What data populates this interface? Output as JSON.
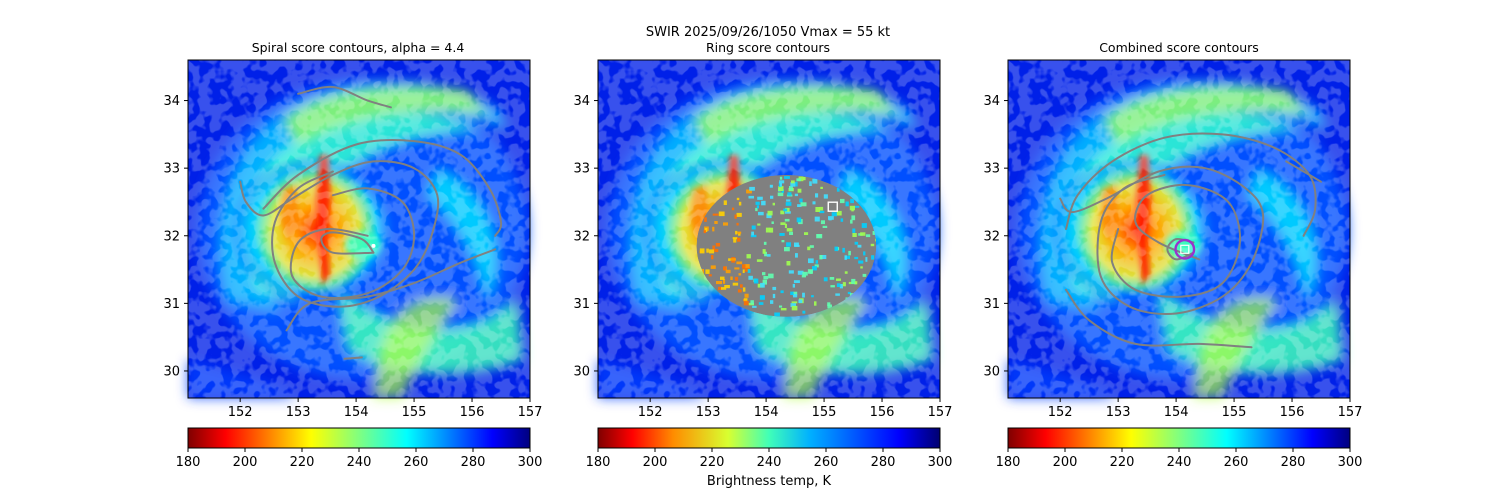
{
  "suptitle": "SWIR  2025/09/26/1050    Vmax = 55 kt",
  "colors": {
    "eye_marker": "#ffffff",
    "contour": "#808080",
    "ring_fill": "#808080",
    "center_ring": "#9933cc"
  },
  "chart_data": [
    {
      "type": "heatmap",
      "title": "Spiral score contours, alpha =  4.4",
      "xlim": [
        151.1,
        157.0
      ],
      "ylim": [
        29.6,
        34.6
      ],
      "xticks": [
        "152",
        "153",
        "154",
        "155",
        "156",
        "157"
      ],
      "yticks": [
        "30",
        "31",
        "32",
        "33",
        "34"
      ],
      "storm_center": [
        154.3,
        31.85
      ],
      "overlay": "spiral",
      "contours": [
        [
          [
            152.0,
            32.8
          ],
          [
            152.1,
            32.5
          ],
          [
            152.4,
            32.3
          ],
          [
            152.9,
            32.55
          ],
          [
            153.6,
            32.9
          ],
          [
            154.3,
            33.1
          ],
          [
            155.0,
            33.0
          ],
          [
            155.4,
            32.6
          ],
          [
            155.3,
            32.0
          ],
          [
            155.0,
            31.5
          ],
          [
            154.4,
            31.1
          ],
          [
            153.7,
            30.95
          ],
          [
            153.0,
            31.1
          ],
          [
            152.6,
            31.6
          ],
          [
            152.6,
            32.2
          ],
          [
            153.0,
            32.7
          ],
          [
            153.6,
            32.95
          ]
        ],
        [
          [
            154.2,
            32.0
          ],
          [
            153.5,
            32.1
          ],
          [
            153.0,
            31.9
          ],
          [
            152.9,
            31.4
          ],
          [
            153.4,
            31.1
          ],
          [
            154.2,
            31.15
          ],
          [
            154.8,
            31.5
          ],
          [
            155.0,
            32.0
          ],
          [
            154.8,
            32.5
          ],
          [
            154.2,
            32.7
          ],
          [
            153.6,
            32.6
          ]
        ],
        [
          [
            154.3,
            31.75
          ],
          [
            153.6,
            31.75
          ],
          [
            153.4,
            31.95
          ],
          [
            153.6,
            32.05
          ],
          [
            154.1,
            31.95
          ],
          [
            154.3,
            31.75
          ]
        ],
        [
          [
            152.4,
            32.4
          ],
          [
            153.0,
            32.9
          ],
          [
            154.0,
            33.35
          ],
          [
            155.0,
            33.4
          ],
          [
            155.8,
            33.2
          ],
          [
            156.3,
            32.7
          ],
          [
            156.5,
            32.2
          ],
          [
            156.4,
            32.0
          ]
        ],
        [
          [
            152.8,
            30.6
          ],
          [
            153.2,
            31.0
          ],
          [
            154.2,
            31.1
          ],
          [
            155.0,
            31.3
          ],
          [
            155.8,
            31.6
          ],
          [
            156.4,
            31.8
          ]
        ],
        [
          [
            153.8,
            30.18
          ],
          [
            154.1,
            30.2
          ]
        ],
        [
          [
            153.0,
            34.1
          ],
          [
            153.6,
            34.2
          ],
          [
            154.2,
            34.0
          ],
          [
            154.6,
            33.9
          ]
        ]
      ],
      "colorbar": {
        "ticks": [
          "180",
          "200",
          "220",
          "240",
          "260",
          "280",
          "300"
        ],
        "range": [
          180,
          300
        ],
        "label": ""
      }
    },
    {
      "type": "heatmap",
      "title": "Ring score contours",
      "xlim": [
        151.1,
        157.0
      ],
      "ylim": [
        29.6,
        34.6
      ],
      "xticks": [
        "152",
        "153",
        "154",
        "155",
        "156",
        "157"
      ],
      "yticks": [
        "30",
        "31",
        "32",
        "33",
        "34"
      ],
      "storm_center": [
        154.3,
        31.85
      ],
      "overlay": "ring",
      "ring_region": {
        "center": [
          154.35,
          31.85
        ],
        "radius_x": 1.55,
        "radius_y": 1.05
      },
      "marker": [
        155.15,
        32.43
      ],
      "colorbar": {
        "ticks": [
          "180",
          "200",
          "220",
          "240",
          "260",
          "280",
          "300"
        ],
        "range": [
          180,
          300
        ],
        "label": "Brightness temp, K"
      }
    },
    {
      "type": "heatmap",
      "title": "Combined score contours",
      "xlim": [
        151.1,
        157.0
      ],
      "ylim": [
        29.6,
        34.6
      ],
      "xticks": [
        "152",
        "153",
        "154",
        "155",
        "156",
        "157"
      ],
      "yticks": [
        "30",
        "31",
        "32",
        "33",
        "34"
      ],
      "storm_center": [
        154.3,
        31.85
      ],
      "overlay": "combined",
      "marker": [
        154.15,
        31.8
      ],
      "center_ring": {
        "center": [
          154.15,
          31.8
        ],
        "radius": 0.16
      },
      "contours": [
        [
          [
            152.0,
            32.55
          ],
          [
            152.2,
            32.35
          ],
          [
            152.8,
            32.55
          ],
          [
            153.7,
            32.95
          ],
          [
            154.5,
            33.0
          ],
          [
            155.2,
            32.7
          ],
          [
            155.5,
            32.3
          ],
          [
            155.3,
            31.6
          ],
          [
            154.8,
            31.1
          ],
          [
            154.0,
            30.85
          ],
          [
            153.2,
            30.95
          ],
          [
            152.7,
            31.4
          ],
          [
            152.7,
            32.2
          ],
          [
            153.1,
            32.7
          ],
          [
            153.8,
            32.9
          ]
        ],
        [
          [
            154.4,
            31.65
          ],
          [
            153.7,
            31.9
          ],
          [
            153.3,
            32.2
          ],
          [
            153.5,
            32.6
          ],
          [
            154.2,
            32.75
          ],
          [
            154.9,
            32.5
          ],
          [
            155.1,
            31.9
          ],
          [
            154.8,
            31.3
          ],
          [
            154.1,
            31.1
          ],
          [
            153.3,
            31.2
          ],
          [
            152.9,
            31.6
          ],
          [
            153.0,
            32.1
          ]
        ],
        [
          [
            154.3,
            31.75
          ],
          [
            154.0,
            31.65
          ],
          [
            153.85,
            31.8
          ],
          [
            154.0,
            31.95
          ],
          [
            154.3,
            31.9
          ]
        ],
        [
          [
            152.1,
            32.1
          ],
          [
            152.3,
            32.6
          ],
          [
            152.9,
            33.1
          ],
          [
            153.8,
            33.45
          ],
          [
            154.8,
            33.5
          ],
          [
            155.7,
            33.3
          ],
          [
            156.3,
            32.9
          ],
          [
            156.4,
            32.4
          ],
          [
            156.2,
            32.0
          ]
        ],
        [
          [
            152.1,
            31.2
          ],
          [
            152.5,
            30.75
          ],
          [
            153.3,
            30.4
          ],
          [
            154.4,
            30.4
          ],
          [
            155.3,
            30.35
          ]
        ],
        [
          [
            156.5,
            32.8
          ],
          [
            156.2,
            32.95
          ],
          [
            155.9,
            33.1
          ]
        ]
      ],
      "colorbar": {
        "ticks": [
          "180",
          "200",
          "220",
          "240",
          "260",
          "280",
          "300"
        ],
        "range": [
          180,
          300
        ],
        "label": ""
      }
    }
  ]
}
